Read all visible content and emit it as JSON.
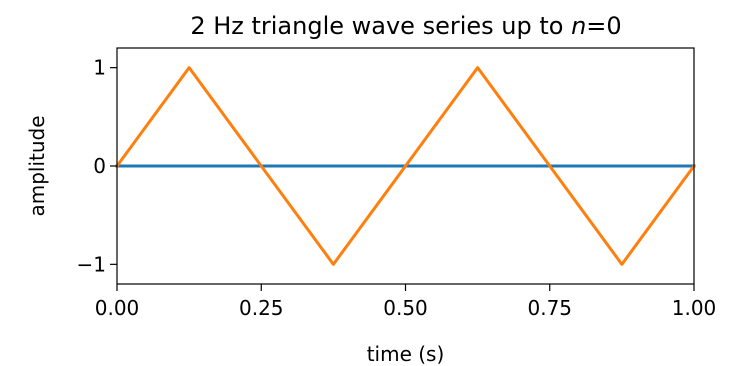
{
  "chart_data": {
    "type": "line",
    "title": {
      "prefix": "2 Hz triangle wave series up to ",
      "var": "n",
      "suffix": "=0"
    },
    "xlabel": "time (s)",
    "ylabel": "amplitude",
    "xlim": [
      0,
      1
    ],
    "ylim": [
      -1.2,
      1.2
    ],
    "grid": false,
    "xticks": [
      {
        "value": 0,
        "label": "0.00"
      },
      {
        "value": 0.25,
        "label": "0.25"
      },
      {
        "value": 0.5,
        "label": "0.50"
      },
      {
        "value": 0.75,
        "label": "0.75"
      },
      {
        "value": 1,
        "label": "1.00"
      }
    ],
    "yticks": [
      {
        "value": -1,
        "label": "−1"
      },
      {
        "value": 0,
        "label": "0"
      },
      {
        "value": 1,
        "label": "1"
      }
    ],
    "series": [
      {
        "color": "#1f77b4",
        "x": [
          0,
          1
        ],
        "y": [
          0,
          0
        ]
      },
      {
        "color": "#ff7f0e",
        "x": [
          0,
          0.125,
          0.375,
          0.625,
          0.875,
          1
        ],
        "y": [
          0,
          1,
          -1,
          1,
          -1,
          0
        ]
      }
    ]
  }
}
